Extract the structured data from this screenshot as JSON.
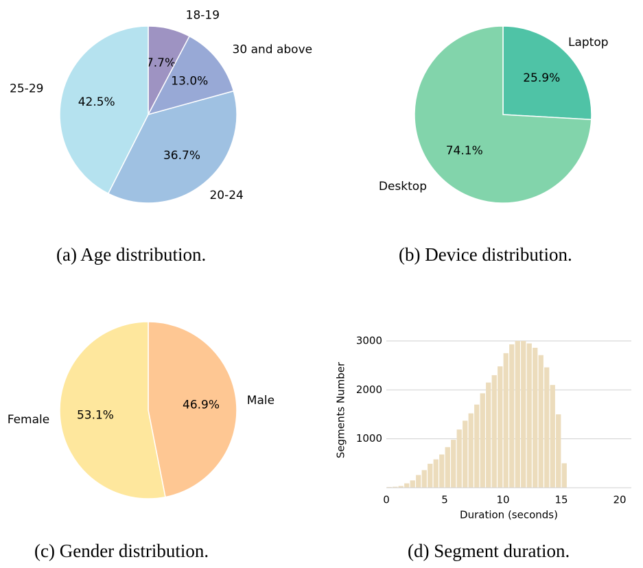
{
  "chart_data": [
    {
      "type": "pie",
      "caption": "(a)  Age distribution.",
      "slices": [
        {
          "label": "18-19",
          "value": 7.7,
          "pct_label": "7.7%",
          "color": "#9e93c2"
        },
        {
          "label": "30 and above",
          "value": 13.0,
          "pct_label": "13.0%",
          "color": "#98a9d6"
        },
        {
          "label": "20-24",
          "value": 36.7,
          "pct_label": "36.7%",
          "color": "#9fc1e2"
        },
        {
          "label": "25-29",
          "value": 42.5,
          "pct_label": "42.5%",
          "color": "#b5e2ef"
        }
      ]
    },
    {
      "type": "pie",
      "caption": "(b)  Device distribution.",
      "slices": [
        {
          "label": "Laptop",
          "value": 25.9,
          "pct_label": "25.9%",
          "color": "#4fc3a6"
        },
        {
          "label": "Desktop",
          "value": 74.1,
          "pct_label": "74.1%",
          "color": "#82d4ab"
        }
      ]
    },
    {
      "type": "pie",
      "caption": "(c)  Gender distribution.",
      "slices": [
        {
          "label": "Male",
          "value": 46.9,
          "pct_label": "46.9%",
          "color": "#fec793"
        },
        {
          "label": "Female",
          "value": 53.1,
          "pct_label": "53.1%",
          "color": "#fee79d"
        }
      ]
    },
    {
      "type": "bar",
      "caption": "(d)  Segment duration.",
      "xlabel": "Duration (seconds)",
      "ylabel": "Segments Number",
      "xlim": [
        0,
        21
      ],
      "ylim": [
        0,
        3000
      ],
      "xticks": [
        0,
        5,
        10,
        15,
        20
      ],
      "yticks": [
        1000,
        2000,
        3000
      ],
      "grid": "horizontal",
      "bar_color": "#ecdcbc",
      "bin_width": 0.5,
      "bin_starts": [
        0,
        0.5,
        1,
        1.5,
        2,
        2.5,
        3,
        3.5,
        4,
        4.5,
        5,
        5.5,
        6,
        6.5,
        7,
        7.5,
        8,
        8.5,
        9,
        9.5,
        10,
        10.5,
        11,
        11.5,
        12,
        12.5,
        13,
        13.5,
        14,
        14.5,
        15
      ],
      "values": [
        15,
        20,
        35,
        90,
        150,
        260,
        360,
        490,
        580,
        680,
        830,
        980,
        1190,
        1370,
        1520,
        1700,
        1930,
        2150,
        2300,
        2480,
        2750,
        2930,
        3000,
        3000,
        2950,
        2860,
        2710,
        2460,
        2100,
        1500,
        500
      ]
    }
  ]
}
